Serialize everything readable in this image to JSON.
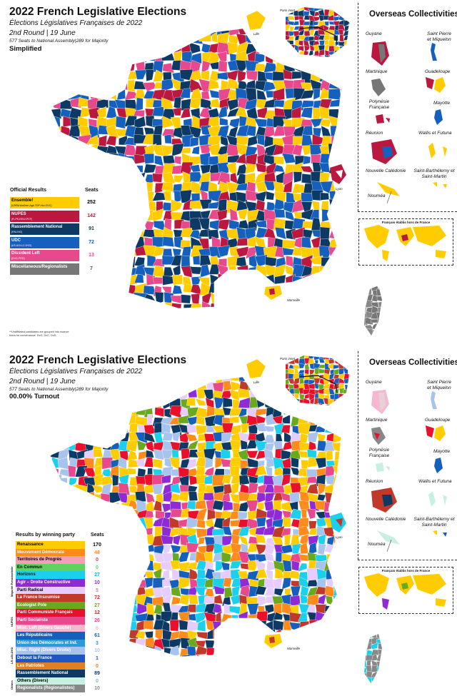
{
  "panels": [
    {
      "title": "2022 French Legislative Elections",
      "subtitle": "Élections Législatives Françaises de 2022",
      "round": "2nd Round | 19 June",
      "seats_note": "577 Seats to National Assembly|289 for Majority",
      "mode": "Simplified",
      "legend_title": "Official Results",
      "legend_seats_header": "Seats",
      "legend": [
        {
          "label": "Ensemble!",
          "sub": "(LREM-MoDem-Agir-TDP-Hor-DVC)",
          "seats": "252",
          "color": "#ffcc00",
          "text_color": "#000000",
          "num_color": "#000000"
        },
        {
          "label": "NUPES",
          "sub": "(FI-PS-EELV-PCF)",
          "seats": "142",
          "color": "#bb1840",
          "text_color": "#ffffff",
          "num_color": "#bb1840"
        },
        {
          "label": "Rassemblement National",
          "sub": "(RN-ExD)",
          "seats": "91",
          "color": "#0d3a64",
          "text_color": "#ffffff",
          "num_color": "#0d3a64"
        },
        {
          "label": "UDC",
          "sub": "(LR-UDI-LC-DVD)",
          "seats": "72",
          "color": "#1560bd",
          "text_color": "#ffffff",
          "num_color": "#1560bd"
        },
        {
          "label": "Dissident Left",
          "sub": "(DVG-PRG)",
          "seats": "13",
          "color": "#e8488c",
          "text_color": "#ffffff",
          "num_color": "#e8488c"
        },
        {
          "label": "Miscellaneous/Regionalists",
          "sub": "",
          "seats": "7",
          "color": "#777777",
          "text_color": "#ffffff",
          "num_color": "#555555"
        }
      ],
      "footnote": "**Unaffiliated candidates are grouped into nuance blocs for conveniance. DvG, DvC, DvD",
      "overseas_title": "Overseas Collectivities",
      "abroad_label": "Français établis hors de France",
      "cities": [
        "Paris inset",
        "Lille",
        "Lyon",
        "Marseille"
      ]
    },
    {
      "title": "2022 French Legislative Elections",
      "subtitle": "Élections Législatives Françaises de 2022",
      "round": "2nd Round | 19 June",
      "seats_note": "577 Seats to National Assembly|289 for Majority",
      "mode": "00.00% Turnout",
      "legend_title": "Results by winning party",
      "legend_seats_header": "Seats",
      "groups": [
        "Majorité Présidentielle",
        "NUPES",
        "LR-UDI-DVD",
        "Others"
      ],
      "legend": [
        {
          "label": "Renaissance",
          "seats": "170",
          "color": "#ffcc00",
          "text_color": "#000000",
          "num_color": "#000000"
        },
        {
          "label": "Mouvement Démocrate",
          "seats": "48",
          "color": "#ff8c1a",
          "text_color": "#ffffff",
          "num_color": "#ff8c1a"
        },
        {
          "label": "Territoires de Progrès",
          "seats": "0",
          "color": "#f2a0b4",
          "text_color": "#000000",
          "num_color": "#d04060"
        },
        {
          "label": "En Commun",
          "seats": "0",
          "color": "#5fd35f",
          "text_color": "#000000",
          "num_color": "#5fd35f"
        },
        {
          "label": "Horizons",
          "seats": "27",
          "color": "#1ad0ec",
          "text_color": "#000000",
          "num_color": "#1ab0cc"
        },
        {
          "label": "Agir – Droite Constructive",
          "seats": "10",
          "color": "#8f2bd6",
          "text_color": "#ffffff",
          "num_color": "#8f2bd6"
        },
        {
          "label": "Parti Radical",
          "seats": "5",
          "color": "#e6ccff",
          "text_color": "#000000",
          "num_color": "#b090d0"
        },
        {
          "label": "La France Insoumise",
          "seats": "72",
          "color": "#c0392b",
          "text_color": "#ffffff",
          "num_color": "#c0392b"
        },
        {
          "label": "Ecologist Pole",
          "seats": "27",
          "color": "#6aa820",
          "text_color": "#ffffff",
          "num_color": "#6aa820"
        },
        {
          "label": "Parti Communiste Français",
          "seats": "12",
          "color": "#e8102c",
          "text_color": "#ffffff",
          "num_color": "#e8102c"
        },
        {
          "label": "Parti Socialiste",
          "seats": "26",
          "color": "#e8488c",
          "text_color": "#ffffff",
          "num_color": "#e8488c"
        },
        {
          "label": "Misc. Left (Divers Gauche)",
          "seats": "6",
          "color": "#f6b8d0",
          "text_color": "#ffffff",
          "num_color": "#f6b8d0"
        },
        {
          "label": "Les Républicains",
          "seats": "61",
          "color": "#1560bd",
          "text_color": "#ffffff",
          "num_color": "#1560bd"
        },
        {
          "label": "Union des Démocrates et Ind.",
          "seats": "3",
          "color": "#2a9ad8",
          "text_color": "#ffffff",
          "num_color": "#2a9ad8"
        },
        {
          "label": "Misc. Right (Divers Droite)",
          "seats": "10",
          "color": "#a8c4ee",
          "text_color": "#ffffff",
          "num_color": "#a8c4ee"
        },
        {
          "label": "Debout la France",
          "seats": "1",
          "color": "#1e56c8",
          "text_color": "#ffffff",
          "num_color": "#1e56c8"
        },
        {
          "label": "Les Patriotes",
          "seats": "0",
          "color": "#e08020",
          "text_color": "#ffffff",
          "num_color": "#e08020"
        },
        {
          "label": "Rassemblement National",
          "seats": "89",
          "color": "#0d3a64",
          "text_color": "#ffffff",
          "num_color": "#0d3a64"
        },
        {
          "label": "Others (Divers)",
          "seats": "0",
          "color": "#c8f0e0",
          "text_color": "#000000",
          "num_color": "#80c0a0"
        },
        {
          "label": "Regionalists (Régionalistes)",
          "seats": "10",
          "color": "#888888",
          "text_color": "#ffffff",
          "num_color": "#888888"
        }
      ],
      "overseas_title": "Overseas Collectivities",
      "abroad_label": "Français établis hors de France",
      "cities": [
        "Paris inset",
        "Lille",
        "Lyon",
        "Marseille"
      ]
    }
  ],
  "territories": [
    "Guyane",
    "Saint Pierre et Miquelon",
    "Martinique",
    "Guadeloupe",
    "Polynésie Française",
    "Mayotte",
    "Réunion",
    "Wallis et Futuna",
    "Nouvelle Calédonie",
    "Saint-Barthélemy et Saint-Martin",
    "Nouméa"
  ],
  "palettes": {
    "simplified": [
      "#ffcc00",
      "#bb1840",
      "#0d3a64",
      "#1560bd",
      "#e8488c",
      "#ffcc00",
      "#0d3a64",
      "#1560bd"
    ],
    "detailed": [
      "#ffcc00",
      "#ff8c1a",
      "#1ad0ec",
      "#c0392b",
      "#6aa820",
      "#e8102c",
      "#e8488c",
      "#1560bd",
      "#0d3a64",
      "#a8c4ee",
      "#8f2bd6",
      "#e6ccff",
      "#0d3a64",
      "#ffcc00"
    ]
  }
}
